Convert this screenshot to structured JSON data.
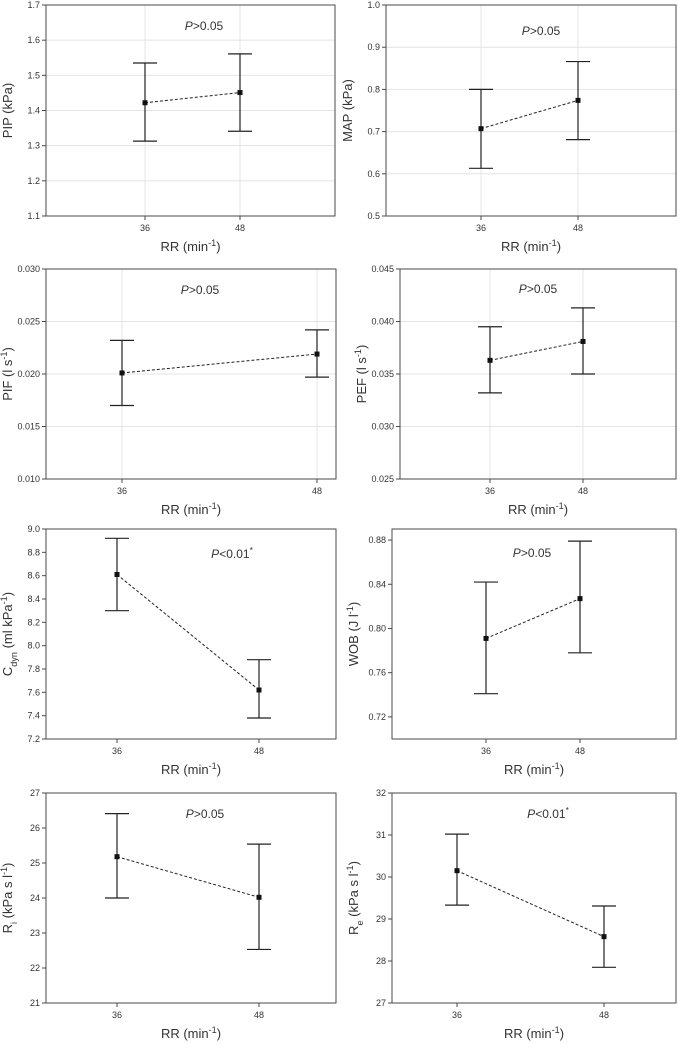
{
  "chart_data": [
    {
      "type": "line",
      "title": "",
      "ylabel": "PIP (kPa)",
      "ylabel_parts": [
        [
          "PIP (kPa)",
          ""
        ]
      ],
      "xlabel": "RR (min-1)",
      "xlabel_parts": [
        [
          "RR (min",
          ""
        ],
        [
          "-1",
          "sup"
        ],
        [
          ")",
          ""
        ]
      ],
      "annotation": "P>0.05",
      "annotation_parts": [
        [
          "P",
          "i"
        ],
        [
          ">0.05",
          ""
        ]
      ],
      "categories": [
        "36",
        "48"
      ],
      "ylim": [
        1.1,
        1.7
      ],
      "yticks": [
        "1.1",
        "1.2",
        "1.3",
        "1.4",
        "1.5",
        "1.6",
        "1.7"
      ],
      "series": [
        {
          "name": "mean",
          "values": [
            1.422,
            1.451
          ],
          "err_low": [
            1.313,
            1.341
          ],
          "err_high": [
            1.535,
            1.561
          ]
        }
      ],
      "grid": true
    },
    {
      "type": "line",
      "title": "",
      "ylabel": "MAP (kPa)",
      "ylabel_parts": [
        [
          "MAP (kPa)",
          ""
        ]
      ],
      "xlabel": "RR (min-1)",
      "xlabel_parts": [
        [
          "RR (min",
          ""
        ],
        [
          "-1",
          "sup"
        ],
        [
          ")",
          ""
        ]
      ],
      "annotation": "P>0.05",
      "annotation_parts": [
        [
          "P",
          "i"
        ],
        [
          ">0.05",
          ""
        ]
      ],
      "categories": [
        "36",
        "48"
      ],
      "ylim": [
        0.5,
        1.0
      ],
      "yticks": [
        "0.5",
        "0.6",
        "0.7",
        "0.8",
        "0.9",
        "1.0"
      ],
      "series": [
        {
          "name": "mean",
          "values": [
            0.707,
            0.774
          ],
          "err_low": [
            0.613,
            0.681
          ],
          "err_high": [
            0.8,
            0.866
          ]
        }
      ],
      "grid": true
    },
    {
      "type": "line",
      "title": "",
      "ylabel": "PIF (l s-1)",
      "ylabel_parts": [
        [
          "PIF (l s",
          ""
        ],
        [
          "-1",
          "sup"
        ],
        [
          ")",
          ""
        ]
      ],
      "xlabel": "RR (min-1)",
      "xlabel_parts": [
        [
          "RR (min",
          ""
        ],
        [
          "-1",
          "sup"
        ],
        [
          ")",
          ""
        ]
      ],
      "annotation": "P>0.05",
      "annotation_parts": [
        [
          "P",
          "i"
        ],
        [
          ">0.05",
          ""
        ]
      ],
      "categories": [
        "36",
        "48"
      ],
      "ylim": [
        0.01,
        0.03
      ],
      "yticks": [
        "0.010",
        "0.015",
        "0.020",
        "0.025",
        "0.030"
      ],
      "series": [
        {
          "name": "mean",
          "values": [
            0.0201,
            0.0219
          ],
          "err_low": [
            0.017,
            0.0197
          ],
          "err_high": [
            0.0232,
            0.0242
          ]
        }
      ],
      "grid": true
    },
    {
      "type": "line",
      "title": "",
      "ylabel": "PEF (l s-1)",
      "ylabel_parts": [
        [
          "PEF (l s",
          ""
        ],
        [
          "-1",
          "sup"
        ],
        [
          ")",
          ""
        ]
      ],
      "xlabel": "RR (min-1)",
      "xlabel_parts": [
        [
          "RR (min",
          ""
        ],
        [
          "-1",
          "sup"
        ],
        [
          ")",
          ""
        ]
      ],
      "annotation": "P>0.05",
      "annotation_parts": [
        [
          "P",
          "i"
        ],
        [
          ">0.05",
          ""
        ]
      ],
      "categories": [
        "36",
        "48"
      ],
      "ylim": [
        0.025,
        0.045
      ],
      "yticks": [
        "0.025",
        "0.030",
        "0.035",
        "0.040",
        "0.045"
      ],
      "series": [
        {
          "name": "mean",
          "values": [
            0.0363,
            0.0381
          ],
          "err_low": [
            0.0332,
            0.035
          ],
          "err_high": [
            0.0395,
            0.0413
          ]
        }
      ],
      "grid": true
    },
    {
      "type": "line",
      "title": "",
      "ylabel": "Cdyn (ml kPa-1)",
      "ylabel_parts": [
        [
          "C",
          ""
        ],
        [
          "dyn",
          "sub"
        ],
        [
          " (ml kPa",
          ""
        ],
        [
          "-1",
          "sup"
        ],
        [
          ")",
          ""
        ]
      ],
      "xlabel": "RR (min-1)",
      "xlabel_parts": [
        [
          "RR (min",
          ""
        ],
        [
          "-1",
          "sup"
        ],
        [
          ")",
          ""
        ]
      ],
      "annotation": "P<0.01*",
      "annotation_parts": [
        [
          "P",
          "i"
        ],
        [
          "<0.01",
          ""
        ],
        [
          "*",
          "sup"
        ]
      ],
      "categories": [
        "36",
        "48"
      ],
      "ylim": [
        7.2,
        9.0
      ],
      "yticks": [
        "7.2",
        "7.4",
        "7.6",
        "7.8",
        "8.0",
        "8.2",
        "8.4",
        "8.6",
        "8.8",
        "9.0"
      ],
      "series": [
        {
          "name": "mean",
          "values": [
            8.61,
            7.62
          ],
          "err_low": [
            8.3,
            7.38
          ],
          "err_high": [
            8.92,
            7.88
          ]
        }
      ],
      "grid": false
    },
    {
      "type": "line",
      "title": "",
      "ylabel": "WOB (J l-1)",
      "ylabel_parts": [
        [
          "WOB (J l",
          ""
        ],
        [
          "-1",
          "sup"
        ],
        [
          ")",
          ""
        ]
      ],
      "xlabel": "RR (min-1)",
      "xlabel_parts": [
        [
          "RR (min",
          ""
        ],
        [
          "-1",
          "sup"
        ],
        [
          ")",
          ""
        ]
      ],
      "annotation": "P>0.05",
      "annotation_parts": [
        [
          "P",
          "i"
        ],
        [
          ">0.05",
          ""
        ]
      ],
      "categories": [
        "36",
        "48"
      ],
      "ylim": [
        0.7,
        0.89
      ],
      "yticks": [
        "0.72",
        "0.76",
        "0.80",
        "0.84",
        "0.88"
      ],
      "series": [
        {
          "name": "mean",
          "values": [
            0.791,
            0.827
          ],
          "err_low": [
            0.741,
            0.778
          ],
          "err_high": [
            0.842,
            0.879
          ]
        }
      ],
      "grid": false
    },
    {
      "type": "line",
      "title": "",
      "ylabel": "Ri (kPa s l-1)",
      "ylabel_parts": [
        [
          "R",
          ""
        ],
        [
          "i",
          "sub"
        ],
        [
          " (kPa s l",
          ""
        ],
        [
          "-1",
          "sup"
        ],
        [
          ")",
          ""
        ]
      ],
      "xlabel": "RR (min-1)",
      "xlabel_parts": [
        [
          "RR (min",
          ""
        ],
        [
          "-1",
          "sup"
        ],
        [
          ")",
          ""
        ]
      ],
      "annotation": "P>0.05",
      "annotation_parts": [
        [
          "P",
          "i"
        ],
        [
          ">0.05",
          ""
        ]
      ],
      "categories": [
        "36",
        "48"
      ],
      "ylim": [
        21,
        27
      ],
      "yticks": [
        "21",
        "22",
        "23",
        "24",
        "25",
        "26",
        "27"
      ],
      "series": [
        {
          "name": "mean",
          "values": [
            25.18,
            24.02
          ],
          "err_low": [
            24.0,
            22.53
          ],
          "err_high": [
            26.41,
            25.54
          ]
        }
      ],
      "grid": false
    },
    {
      "type": "line",
      "title": "",
      "ylabel": "Re (kPa s l-1)",
      "ylabel_parts": [
        [
          "R",
          ""
        ],
        [
          "e",
          "sub"
        ],
        [
          " (kPa s l",
          ""
        ],
        [
          "-1",
          "sup"
        ],
        [
          ")",
          ""
        ]
      ],
      "xlabel": "RR (min-1)",
      "xlabel_parts": [
        [
          "RR (min",
          ""
        ],
        [
          "-1",
          "sup"
        ],
        [
          ")",
          ""
        ]
      ],
      "annotation": "P<0.01*",
      "annotation_parts": [
        [
          "P",
          "i"
        ],
        [
          "<0.01",
          ""
        ],
        [
          "*",
          "sup"
        ]
      ],
      "categories": [
        "36",
        "48"
      ],
      "ylim": [
        27,
        32
      ],
      "yticks": [
        "27",
        "28",
        "29",
        "30",
        "31",
        "32"
      ],
      "series": [
        {
          "name": "mean",
          "values": [
            30.15,
            28.58
          ],
          "err_low": [
            29.33,
            27.85
          ],
          "err_high": [
            31.02,
            29.31
          ]
        }
      ],
      "grid": false
    }
  ]
}
